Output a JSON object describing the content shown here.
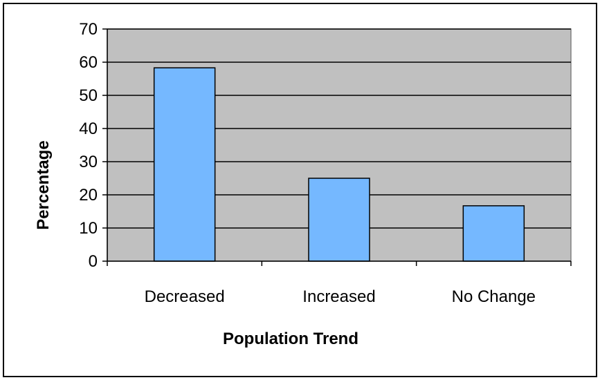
{
  "chart_data": {
    "type": "bar",
    "title": "",
    "xlabel": "Population Trend",
    "ylabel": "Percentage",
    "categories": [
      "Decreased",
      "Increased",
      "No Change"
    ],
    "values": [
      58.3,
      25.0,
      16.7
    ],
    "ylim": [
      0,
      70
    ],
    "yticks": [
      "0",
      "10",
      "20",
      "30",
      "40",
      "50",
      "60",
      "70"
    ],
    "grid": true,
    "legend": "none",
    "colors": {
      "bar": "#75b8ff",
      "plot_background": "#c0c0c0",
      "gridline": "#000000",
      "frame": "#000000"
    }
  }
}
